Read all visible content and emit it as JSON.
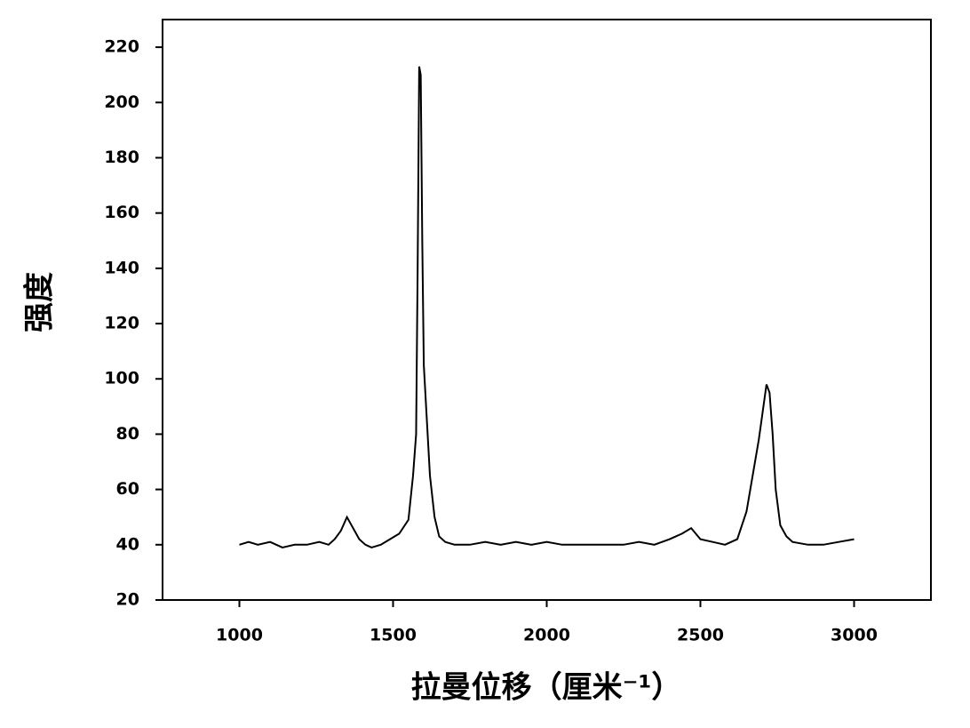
{
  "chart_data": {
    "type": "line",
    "x_label": "拉曼位移（厘米⁻¹）",
    "y_label": "强度",
    "xlim": [
      750,
      3250
    ],
    "xticks": [
      1000,
      1500,
      2000,
      2500,
      3000
    ],
    "ylim": [
      20,
      230
    ],
    "yticks": [
      20,
      40,
      60,
      80,
      100,
      120,
      140,
      160,
      180,
      200,
      220
    ],
    "series": [
      {
        "color": "#000000",
        "x": [
          1000,
          1030,
          1060,
          1100,
          1140,
          1180,
          1220,
          1260,
          1290,
          1310,
          1330,
          1350,
          1360,
          1375,
          1390,
          1410,
          1430,
          1460,
          1490,
          1520,
          1550,
          1565,
          1575,
          1580,
          1585,
          1590,
          1595,
          1600,
          1610,
          1620,
          1635,
          1650,
          1670,
          1700,
          1750,
          1800,
          1850,
          1900,
          1950,
          2000,
          2050,
          2100,
          2150,
          2200,
          2250,
          2300,
          2350,
          2400,
          2440,
          2470,
          2500,
          2540,
          2580,
          2620,
          2650,
          2670,
          2690,
          2705,
          2715,
          2725,
          2735,
          2745,
          2760,
          2780,
          2800,
          2850,
          2900,
          2950,
          3000
        ],
        "values": [
          40,
          41,
          40,
          41,
          39,
          40,
          40,
          41,
          40,
          42,
          45,
          50,
          48,
          45,
          42,
          40,
          39,
          40,
          42,
          44,
          49,
          65,
          80,
          140,
          213,
          210,
          150,
          105,
          85,
          65,
          50,
          43,
          41,
          40,
          40,
          41,
          40,
          41,
          40,
          41,
          40,
          40,
          40,
          40,
          40,
          41,
          40,
          42,
          44,
          46,
          42,
          41,
          40,
          42,
          52,
          65,
          78,
          90,
          98,
          95,
          80,
          60,
          47,
          43,
          41,
          40,
          40,
          41,
          42
        ]
      }
    ]
  }
}
